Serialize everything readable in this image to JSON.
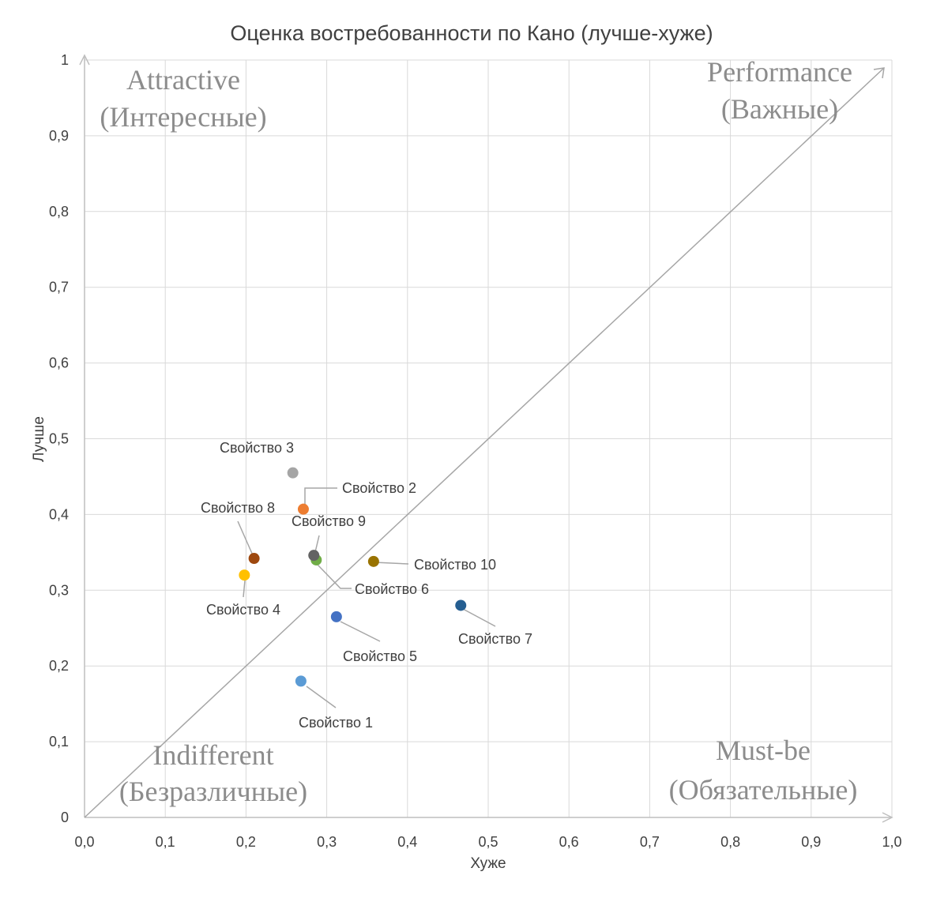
{
  "chart_data": {
    "type": "scatter",
    "title": "Оценка востребованности по Кано (лучше-хуже)",
    "xlabel": "Хуже",
    "ylabel": "Лучше",
    "xlim": [
      0,
      1
    ],
    "ylim": [
      0,
      1
    ],
    "x_ticks": [
      "0,0",
      "0,1",
      "0,2",
      "0,3",
      "0,4",
      "0,5",
      "0,6",
      "0,7",
      "0,8",
      "0,9",
      "1,0"
    ],
    "y_ticks": [
      "0",
      "0,1",
      "0,2",
      "0,3",
      "0,4",
      "0,5",
      "0,6",
      "0,7",
      "0,8",
      "0,9",
      "1"
    ],
    "grid": true,
    "diagonal": {
      "from": [
        0,
        0
      ],
      "to": [
        1,
        1
      ]
    },
    "points": [
      {
        "label": "Свойство 1",
        "x": 0.268,
        "y": 0.18,
        "color": "#5b9bd5"
      },
      {
        "label": "Свойство 2",
        "x": 0.271,
        "y": 0.407,
        "color": "#ed7d31"
      },
      {
        "label": "Свойство 3",
        "x": 0.258,
        "y": 0.455,
        "color": "#a5a5a5"
      },
      {
        "label": "Свойство 4",
        "x": 0.198,
        "y": 0.32,
        "color": "#ffc000"
      },
      {
        "label": "Свойство 5",
        "x": 0.312,
        "y": 0.265,
        "color": "#4472c4"
      },
      {
        "label": "Свойство 6",
        "x": 0.287,
        "y": 0.34,
        "color": "#70ad47"
      },
      {
        "label": "Свойство 7",
        "x": 0.466,
        "y": 0.28,
        "color": "#255e91"
      },
      {
        "label": "Свойство 8",
        "x": 0.21,
        "y": 0.342,
        "color": "#9e480e"
      },
      {
        "label": "Свойство 9",
        "x": 0.284,
        "y": 0.346,
        "color": "#636363"
      },
      {
        "label": "Свойство 10",
        "x": 0.358,
        "y": 0.338,
        "color": "#997300"
      }
    ],
    "quadrants": [
      {
        "id": "attractive",
        "lines": [
          "Attractive",
          "(Интересные)"
        ]
      },
      {
        "id": "performance",
        "lines": [
          "Performance",
          "(Важные)"
        ]
      },
      {
        "id": "indifferent",
        "lines": [
          "Indifferent",
          "(Безразличные)"
        ]
      },
      {
        "id": "must-be",
        "lines": [
          "Must-be",
          "(Обязательные)"
        ]
      }
    ]
  }
}
